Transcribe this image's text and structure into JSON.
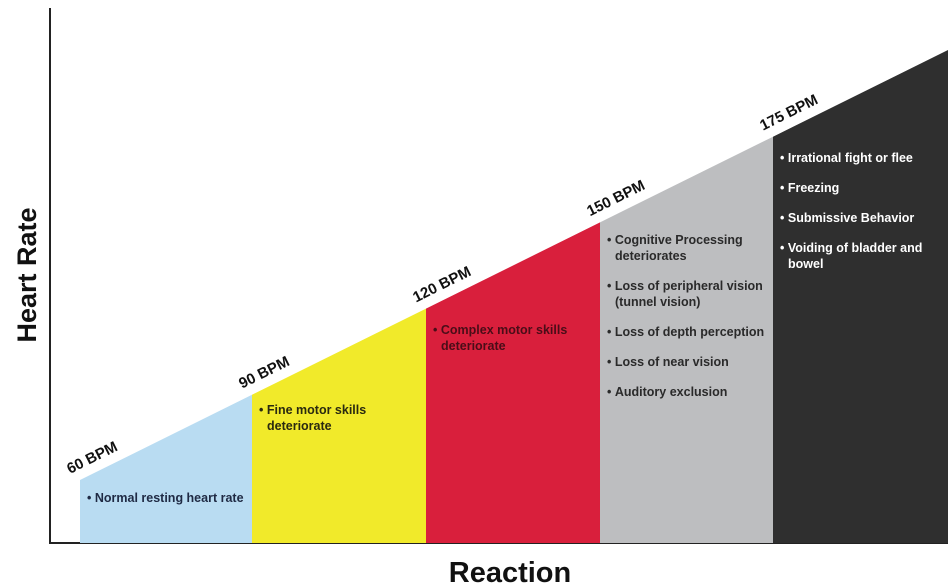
{
  "axes": {
    "y_label": "Heart Rate",
    "x_label": "Reaction"
  },
  "zones": [
    {
      "bpm": "60 BPM",
      "color": "#b9dcf2",
      "text_color": "#1f2a44",
      "items": [
        "Normal resting heart rate"
      ]
    },
    {
      "bpm": "90 BPM",
      "color": "#f1ea2a",
      "text_color": "#2a2a10",
      "items": [
        "Fine motor skills deteriorate"
      ]
    },
    {
      "bpm": "120 BPM",
      "color": "#d91f3c",
      "text_color": "#4a0d18",
      "items": [
        "Complex motor skills deteriorate"
      ]
    },
    {
      "bpm": "150 BPM",
      "color": "#bdbec0",
      "text_color": "#2a2a2a",
      "items": [
        "Cognitive Processing deteriorates",
        "Loss of peripheral vision (tunnel vision)",
        "Loss of depth perception",
        "Loss of near vision",
        "Auditory exclusion"
      ]
    },
    {
      "bpm": "175 BPM",
      "color": "#2f2f2f",
      "text_color": "#ffffff",
      "items": [
        "Irrational fight or flee",
        "Freezing",
        "Submissive Behavior",
        "Voiding of bladder and bowel"
      ]
    }
  ]
}
